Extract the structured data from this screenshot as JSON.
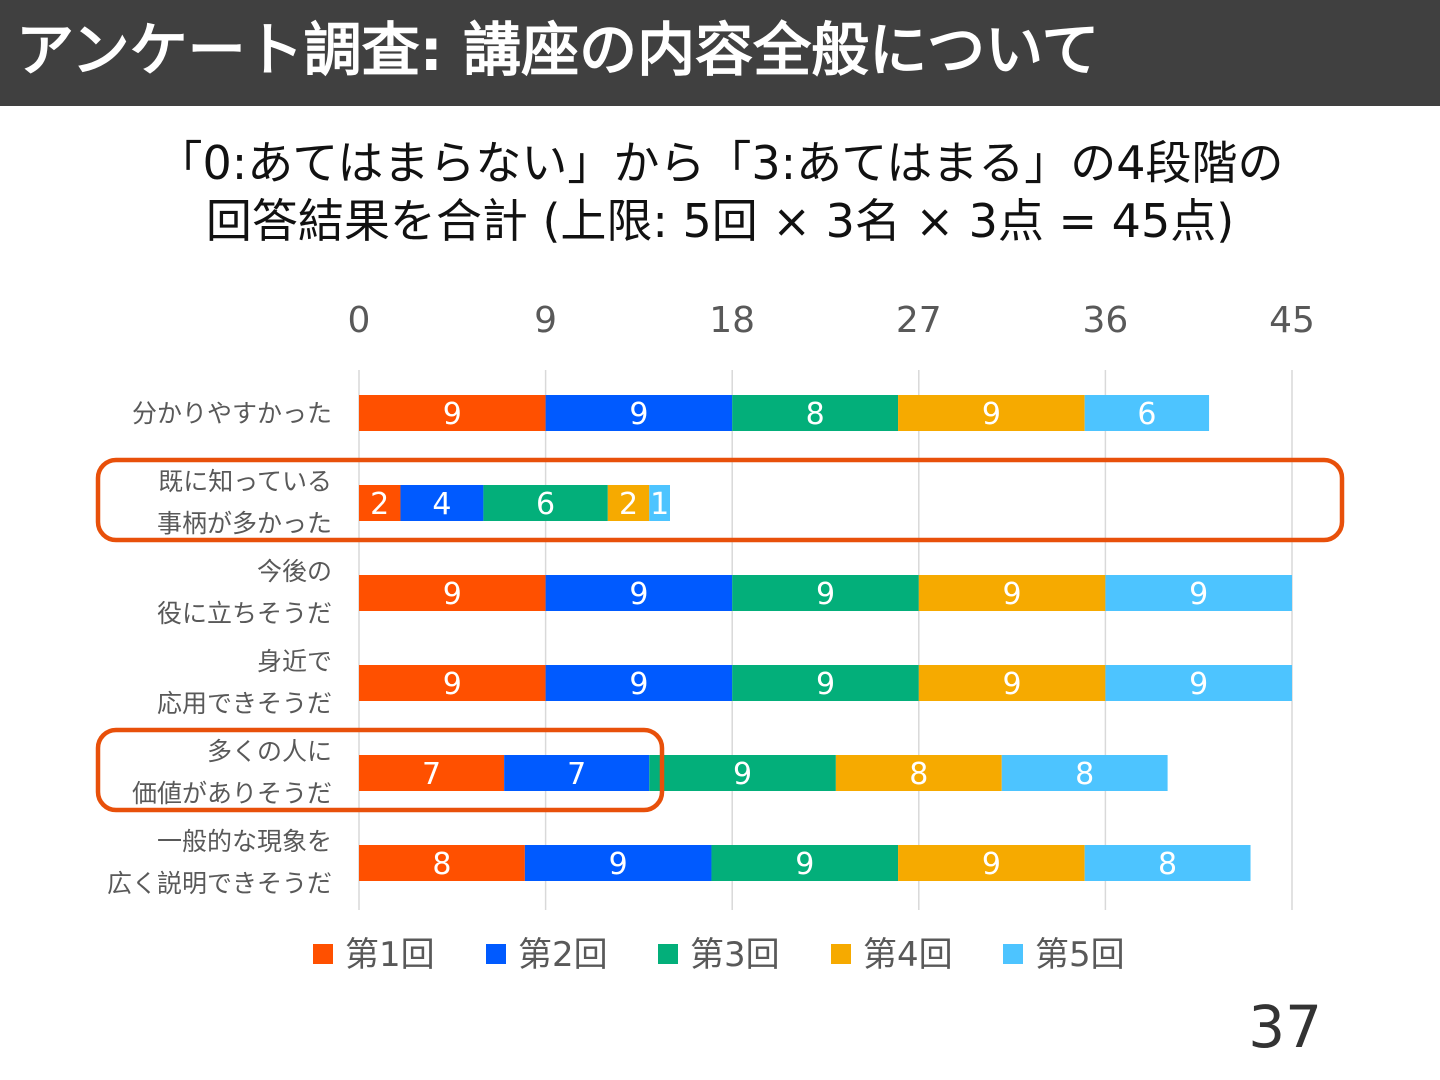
{
  "slide": {
    "title": "アンケート調査: 講座の内容全般について",
    "subtitle_line1": "「0:あてはまらない」から「3:あてはまる」の4段階の",
    "subtitle_line2": "回答結果を合計 (上限: 5回 × 3名 × 3点 = 45点)",
    "page_number": "37"
  },
  "chart_data": {
    "type": "bar",
    "orientation": "horizontal",
    "stacked": true,
    "xlim": [
      0,
      45
    ],
    "xticks": [
      "0",
      "9",
      "18",
      "27",
      "36",
      "45"
    ],
    "grid": true,
    "legend_position": "bottom",
    "categories": [
      [
        "分かりやすかった"
      ],
      [
        "既に知っている",
        "事柄が多かった"
      ],
      [
        "今後の",
        "役に立ちそうだ"
      ],
      [
        "身近で",
        "応用できそうだ"
      ],
      [
        "多くの人に",
        "価値がありそうだ"
      ],
      [
        "一般的な現象を",
        "広く説明できそうだ"
      ]
    ],
    "series": [
      {
        "name": "第1回",
        "color": "#FF5000",
        "values": [
          9,
          2,
          9,
          9,
          7,
          8
        ]
      },
      {
        "name": "第2回",
        "color": "#005AFF",
        "values": [
          9,
          4,
          9,
          9,
          7,
          9
        ]
      },
      {
        "name": "第3回",
        "color": "#03AF7A",
        "values": [
          8,
          6,
          9,
          9,
          9,
          9
        ]
      },
      {
        "name": "第4回",
        "color": "#F6AA00",
        "values": [
          9,
          2,
          9,
          9,
          8,
          9
        ]
      },
      {
        "name": "第5回",
        "color": "#4DC4FF",
        "values": [
          6,
          1,
          9,
          9,
          8,
          8
        ]
      }
    ],
    "highlight_color": "#E8500A"
  }
}
